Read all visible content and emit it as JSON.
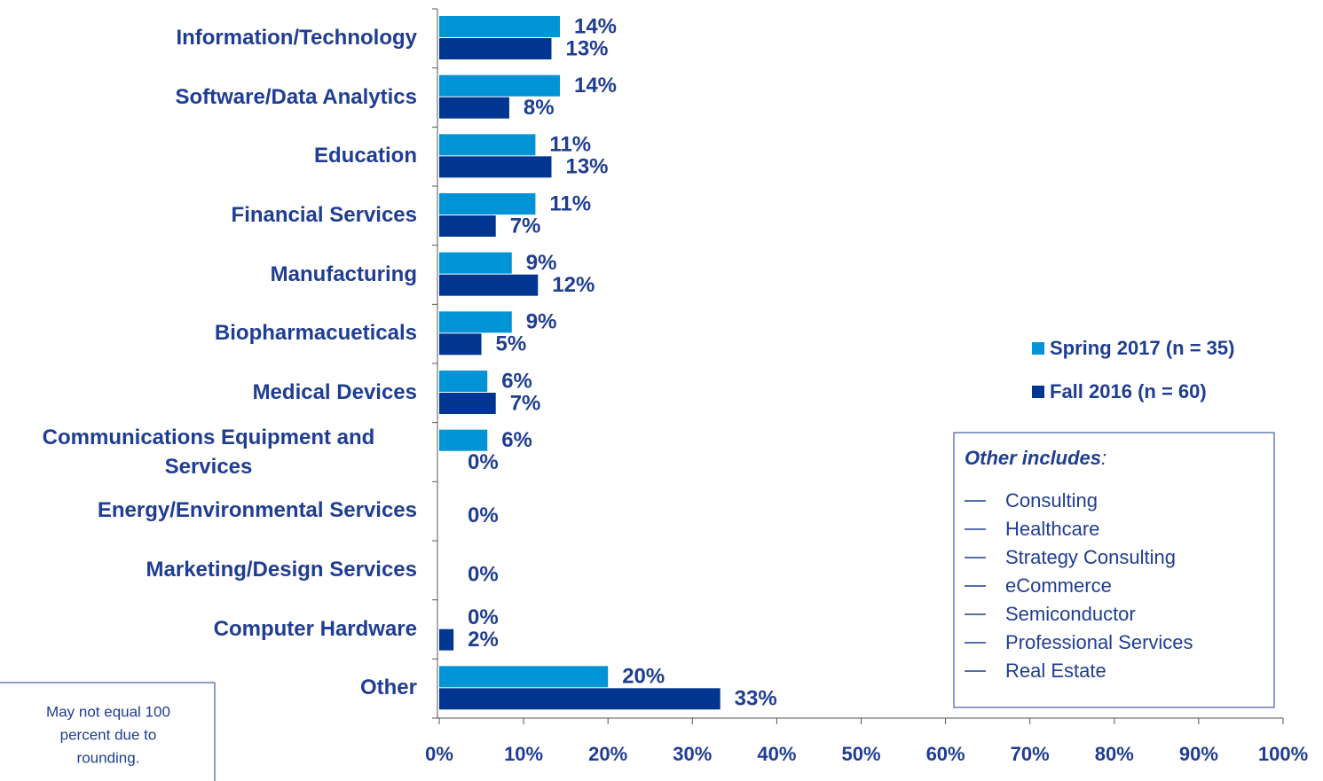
{
  "chart_data": {
    "type": "hbar",
    "categories": [
      "Information/Technology",
      "Software/Data Analytics",
      "Education",
      "Financial Services",
      "Manufacturing",
      "Biopharmacueticals",
      "Medical Devices",
      "Communications Equipment and Services",
      "Energy/Environmental Services",
      "Marketing/Design Services",
      "Computer Hardware",
      "Other"
    ],
    "series": [
      {
        "name": "Spring 2017 (n = 35)",
        "color": "#0093d5",
        "values": [
          14.3,
          14.3,
          11.4,
          11.4,
          8.6,
          8.6,
          5.7,
          5.7,
          null,
          null,
          0,
          20
        ],
        "value_labels": [
          "14%",
          "14%",
          "11%",
          "11%",
          "9%",
          "9%",
          "6%",
          "6%",
          null,
          null,
          "0%",
          "20%"
        ]
      },
      {
        "name": "Fall 2016 (n = 60)",
        "color": "#003591",
        "values": [
          13.3,
          8.3,
          13.3,
          6.7,
          11.7,
          5,
          6.7,
          0,
          0,
          0,
          1.7,
          33.3
        ],
        "value_labels": [
          "13%",
          "8%",
          "13%",
          "7%",
          "12%",
          "5%",
          "7%",
          "0%",
          "0%",
          "0%",
          "2%",
          "33%"
        ]
      }
    ],
    "xlim": [
      0,
      100
    ],
    "xticks": [
      {
        "value": 0,
        "label": "0%"
      },
      {
        "value": 10,
        "label": "10%"
      },
      {
        "value": 20,
        "label": "20%"
      },
      {
        "value": 30,
        "label": "30%"
      },
      {
        "value": 40,
        "label": "40%"
      },
      {
        "value": 50,
        "label": "50%"
      },
      {
        "value": 60,
        "label": "60%"
      },
      {
        "value": 70,
        "label": "70%"
      },
      {
        "value": 80,
        "label": "80%"
      },
      {
        "value": 90,
        "label": "90%"
      },
      {
        "value": 100,
        "label": "100%"
      }
    ],
    "legend": "right",
    "other_box": {
      "title": "Other includes",
      "title_suffix": ":",
      "items": [
        "Consulting",
        "Healthcare",
        "Strategy Consulting",
        "eCommerce",
        "Semiconductor",
        "Professional Services",
        "Real Estate"
      ]
    },
    "note": [
      "May not equal 100",
      "percent due to",
      "rounding."
    ]
  }
}
